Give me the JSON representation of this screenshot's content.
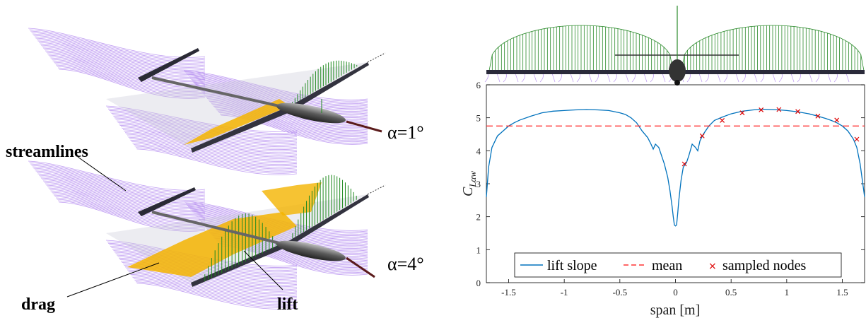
{
  "left": {
    "label_streamlines": "streamlines",
    "label_drag": "drag",
    "label_lift": "lift",
    "angle_top": "α=1°",
    "angle_bottom": "α=4°"
  },
  "chart_data": {
    "type": "line",
    "xlabel": "span [m]",
    "ylabel": "C",
    "ylabel_sub": "Lαw",
    "xlim": [
      -1.7,
      1.7
    ],
    "ylim": [
      0,
      6
    ],
    "xticks": [
      -1.5,
      -1,
      -0.5,
      0,
      0.5,
      1,
      1.5
    ],
    "xtick_labels": [
      "-1.5",
      "-1",
      "-0.5",
      "0",
      "0.5",
      "1",
      "1.5"
    ],
    "yticks": [
      0,
      1,
      2,
      3,
      4,
      5,
      6
    ],
    "ytick_labels": [
      "0",
      "1",
      "2",
      "3",
      "4",
      "5",
      "6"
    ],
    "grid": false,
    "legend_position": "bottom",
    "series": [
      {
        "name": "lift slope",
        "style": "solid",
        "color": "#0072BD",
        "x": [
          -1.7,
          -1.68,
          -1.65,
          -1.6,
          -1.55,
          -1.5,
          -1.45,
          -1.4,
          -1.3,
          -1.2,
          -1.1,
          -1.0,
          -0.9,
          -0.8,
          -0.7,
          -0.6,
          -0.5,
          -0.45,
          -0.4,
          -0.35,
          -0.3,
          -0.25,
          -0.22,
          -0.2,
          -0.18,
          -0.15,
          -0.12,
          -0.1,
          -0.07,
          -0.05,
          -0.03,
          -0.02,
          -0.01,
          0.0,
          0.01,
          0.02,
          0.03,
          0.05,
          0.07,
          0.1,
          0.12,
          0.15,
          0.18,
          0.2,
          0.22,
          0.25,
          0.3,
          0.35,
          0.42,
          0.5,
          0.6,
          0.7,
          0.78,
          0.85,
          0.93,
          1.0,
          1.1,
          1.2,
          1.28,
          1.35,
          1.4,
          1.45,
          1.5,
          1.55,
          1.6,
          1.63,
          1.66,
          1.68,
          1.7
        ],
        "y": [
          2.6,
          3.5,
          4.1,
          4.45,
          4.6,
          4.75,
          4.85,
          4.93,
          5.05,
          5.15,
          5.2,
          5.22,
          5.24,
          5.25,
          5.24,
          5.22,
          5.15,
          5.1,
          5.0,
          4.85,
          4.6,
          4.4,
          4.2,
          4.05,
          4.2,
          4.1,
          3.8,
          3.6,
          3.2,
          2.8,
          2.3,
          2.0,
          1.75,
          1.72,
          1.75,
          2.1,
          2.5,
          3.1,
          3.5,
          3.65,
          3.85,
          4.2,
          4.1,
          4.0,
          4.3,
          4.5,
          4.75,
          4.92,
          5.02,
          5.12,
          5.2,
          5.24,
          5.26,
          5.25,
          5.24,
          5.22,
          5.18,
          5.12,
          5.05,
          4.98,
          4.92,
          4.85,
          4.75,
          4.6,
          4.35,
          4.1,
          3.6,
          3.1,
          2.6
        ]
      },
      {
        "name": "mean",
        "style": "dashed",
        "color": "#ff3333",
        "x": [
          -1.7,
          1.7
        ],
        "y": [
          4.75,
          4.75
        ]
      },
      {
        "name": "sampled nodes",
        "style": "markers",
        "color": "#dd0000",
        "x": [
          0.08,
          0.24,
          0.42,
          0.6,
          0.77,
          0.93,
          1.1,
          1.28,
          1.45,
          1.63
        ],
        "y": [
          3.6,
          4.45,
          4.92,
          5.15,
          5.24,
          5.25,
          5.19,
          5.05,
          4.93,
          4.35
        ]
      }
    ]
  }
}
